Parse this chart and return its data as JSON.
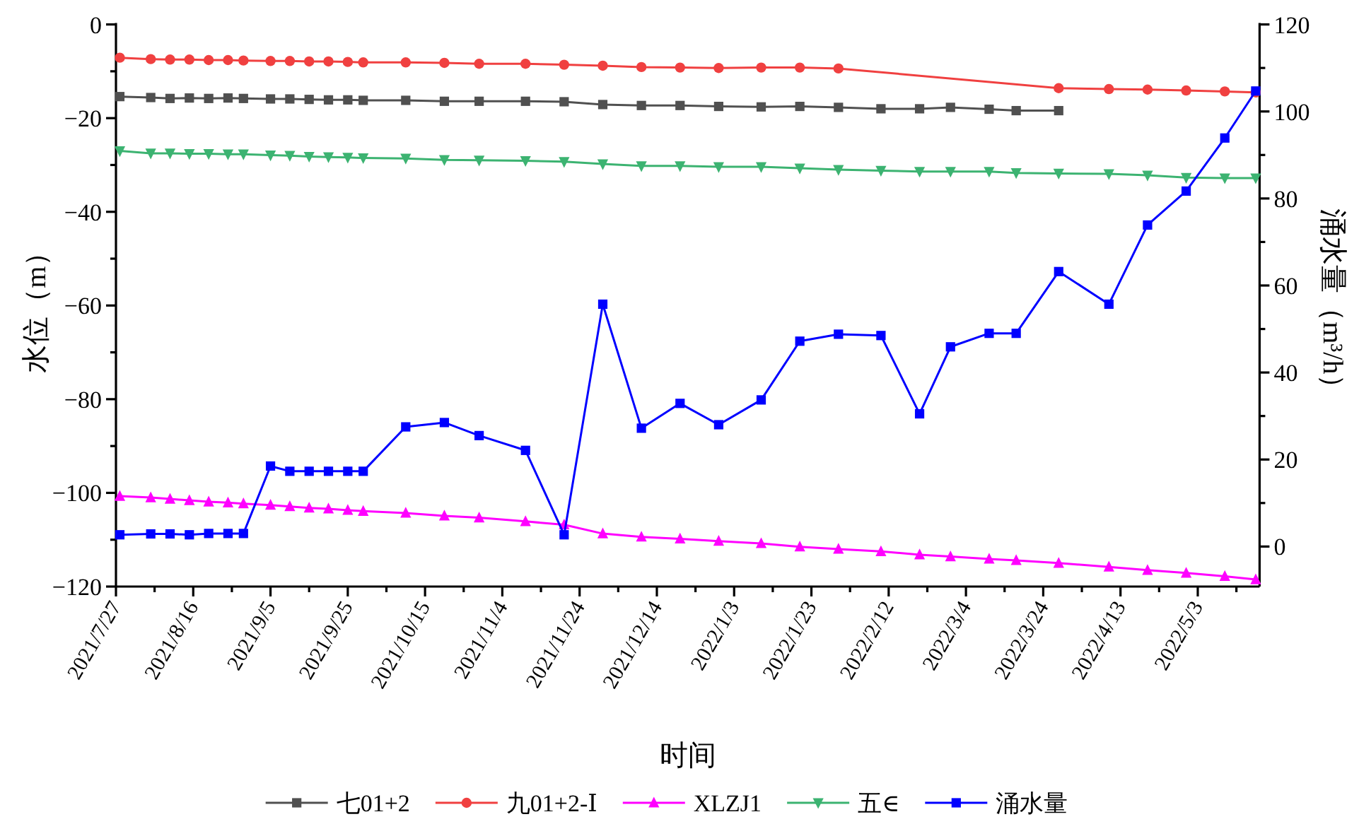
{
  "chart_data": {
    "type": "line",
    "xlabel": "时间",
    "ylabel": "水位（m）",
    "y2label": "涌水量（m³/h）",
    "legend": "bottom",
    "xlim": [
      "2021-07-27",
      "2022-05-19"
    ],
    "xticks": [
      {
        "value": "2021-07-27",
        "label": "2021/7/27"
      },
      {
        "value": "2021-08-16",
        "label": "2021/8/16"
      },
      {
        "value": "2021-09-05",
        "label": "2021/9/5"
      },
      {
        "value": "2021-09-25",
        "label": "2021/9/25"
      },
      {
        "value": "2021-10-15",
        "label": "2021/10/15"
      },
      {
        "value": "2021-11-04",
        "label": "2021/11/4"
      },
      {
        "value": "2021-11-24",
        "label": "2021/11/24"
      },
      {
        "value": "2021-12-14",
        "label": "2021/12/14"
      },
      {
        "value": "2022-01-03",
        "label": "2022/1/3"
      },
      {
        "value": "2022-01-23",
        "label": "2022/1/23"
      },
      {
        "value": "2022-02-12",
        "label": "2022/2/12"
      },
      {
        "value": "2022-03-04",
        "label": "2022/3/4"
      },
      {
        "value": "2022-03-24",
        "label": "2022/3/24"
      },
      {
        "value": "2022-04-13",
        "label": "2022/4/13"
      },
      {
        "value": "2022-05-03",
        "label": "2022/5/3"
      }
    ],
    "ylim": [
      -120,
      0
    ],
    "yticks": [
      0,
      -20,
      -40,
      -60,
      -80,
      -100,
      -120
    ],
    "y2lim": [
      -9.2,
      120
    ],
    "y2ticks": [
      0,
      20,
      40,
      60,
      80,
      100,
      120
    ],
    "series": [
      {
        "name": "七01+2",
        "color": "#505050",
        "marker": "square",
        "x": [
          "2021-07-28",
          "2021-08-05",
          "2021-08-10",
          "2021-08-15",
          "2021-08-20",
          "2021-08-25",
          "2021-08-29",
          "2021-09-05",
          "2021-09-10",
          "2021-09-15",
          "2021-09-20",
          "2021-09-25",
          "2021-09-29",
          "2021-10-10",
          "2021-10-20",
          "2021-10-29",
          "2021-11-10",
          "2021-11-20",
          "2021-11-30",
          "2021-12-10",
          "2021-12-20",
          "2021-12-30",
          "2022-01-10",
          "2022-01-20",
          "2022-01-30",
          "2022-02-10",
          "2022-02-20",
          "2022-02-28",
          "2022-03-10",
          "2022-03-17",
          "2022-03-28"
        ],
        "values": [
          -15.4,
          -15.6,
          -15.8,
          -15.7,
          -15.8,
          -15.7,
          -15.8,
          -15.9,
          -15.9,
          -16.0,
          -16.1,
          -16.1,
          -16.2,
          -16.2,
          -16.4,
          -16.4,
          -16.4,
          -16.5,
          -17.1,
          -17.3,
          -17.3,
          -17.5,
          -17.6,
          -17.5,
          -17.7,
          -18.0,
          -18.0,
          -17.7,
          -18.1,
          -18.4,
          -18.4
        ]
      },
      {
        "name": "九01+2-Ⅰ",
        "color": "#f04040",
        "marker": "circle",
        "x": [
          "2021-07-28",
          "2021-08-05",
          "2021-08-10",
          "2021-08-15",
          "2021-08-20",
          "2021-08-25",
          "2021-08-29",
          "2021-09-05",
          "2021-09-10",
          "2021-09-15",
          "2021-09-20",
          "2021-09-25",
          "2021-09-29",
          "2021-10-10",
          "2021-10-20",
          "2021-10-29",
          "2021-11-10",
          "2021-11-20",
          "2021-11-30",
          "2021-12-10",
          "2021-12-20",
          "2021-12-30",
          "2022-01-10",
          "2022-01-20",
          "2022-01-30",
          "2022-03-28",
          "2022-04-10",
          "2022-04-20",
          "2022-04-30",
          "2022-05-10",
          "2022-05-18"
        ],
        "values": [
          -7.1,
          -7.4,
          -7.5,
          -7.5,
          -7.6,
          -7.6,
          -7.7,
          -7.8,
          -7.8,
          -7.9,
          -7.9,
          -8.0,
          -8.1,
          -8.1,
          -8.2,
          -8.4,
          -8.4,
          -8.6,
          -8.8,
          -9.1,
          -9.2,
          -9.3,
          -9.2,
          -9.2,
          -9.4,
          -13.6,
          -13.8,
          -13.9,
          -14.1,
          -14.3,
          -14.5
        ]
      },
      {
        "name": "XLZJ1",
        "color": "#ff00ff",
        "marker": "triangle",
        "x": [
          "2021-07-28",
          "2021-08-05",
          "2021-08-10",
          "2021-08-15",
          "2021-08-20",
          "2021-08-25",
          "2021-08-29",
          "2021-09-05",
          "2021-09-10",
          "2021-09-15",
          "2021-09-20",
          "2021-09-25",
          "2021-09-29",
          "2021-10-10",
          "2021-10-20",
          "2021-10-29",
          "2021-11-10",
          "2021-11-20",
          "2021-11-30",
          "2021-12-10",
          "2021-12-20",
          "2021-12-30",
          "2022-01-10",
          "2022-01-20",
          "2022-01-30",
          "2022-02-10",
          "2022-02-20",
          "2022-02-28",
          "2022-03-10",
          "2022-03-17",
          "2022-03-28",
          "2022-04-10",
          "2022-04-20",
          "2022-04-30",
          "2022-05-10",
          "2022-05-18"
        ],
        "values": [
          -100.7,
          -101.0,
          -101.3,
          -101.6,
          -101.9,
          -102.1,
          -102.3,
          -102.6,
          -102.9,
          -103.2,
          -103.4,
          -103.7,
          -103.9,
          -104.3,
          -104.9,
          -105.3,
          -106.1,
          -106.8,
          -108.7,
          -109.4,
          -109.8,
          -110.3,
          -110.8,
          -111.5,
          -112.0,
          -112.5,
          -113.2,
          -113.6,
          -114.1,
          -114.4,
          -115.0,
          -115.8,
          -116.5,
          -117.1,
          -117.8,
          -118.5
        ]
      },
      {
        "name": "五∈",
        "color": "#3cb371",
        "marker": "triangle-down",
        "x": [
          "2021-07-28",
          "2021-08-05",
          "2021-08-10",
          "2021-08-15",
          "2021-08-20",
          "2021-08-25",
          "2021-08-29",
          "2021-09-05",
          "2021-09-10",
          "2021-09-15",
          "2021-09-20",
          "2021-09-25",
          "2021-09-29",
          "2021-10-10",
          "2021-10-20",
          "2021-10-29",
          "2021-11-10",
          "2021-11-20",
          "2021-11-30",
          "2021-12-10",
          "2021-12-20",
          "2021-12-30",
          "2022-01-10",
          "2022-01-20",
          "2022-01-30",
          "2022-02-10",
          "2022-02-20",
          "2022-02-28",
          "2022-03-10",
          "2022-03-17",
          "2022-03-28",
          "2022-04-10",
          "2022-04-20",
          "2022-04-30",
          "2022-05-10",
          "2022-05-18"
        ],
        "values": [
          -27.0,
          -27.5,
          -27.5,
          -27.6,
          -27.6,
          -27.7,
          -27.7,
          -27.9,
          -28.0,
          -28.2,
          -28.3,
          -28.4,
          -28.5,
          -28.6,
          -28.9,
          -29.0,
          -29.1,
          -29.3,
          -29.8,
          -30.2,
          -30.2,
          -30.4,
          -30.4,
          -30.7,
          -31.0,
          -31.2,
          -31.4,
          -31.4,
          -31.4,
          -31.7,
          -31.8,
          -31.9,
          -32.2,
          -32.7,
          -32.8,
          -32.8
        ]
      },
      {
        "name": "涌水量",
        "color": "#0000ff",
        "marker": "square",
        "axis": "y2",
        "x": [
          "2021-07-28",
          "2021-08-05",
          "2021-08-10",
          "2021-08-15",
          "2021-08-20",
          "2021-08-25",
          "2021-08-29",
          "2021-09-05",
          "2021-09-10",
          "2021-09-15",
          "2021-09-20",
          "2021-09-25",
          "2021-09-29",
          "2021-10-10",
          "2021-10-20",
          "2021-10-29",
          "2021-11-10",
          "2021-11-20",
          "2021-11-30",
          "2021-12-10",
          "2021-12-20",
          "2021-12-30",
          "2022-01-10",
          "2022-01-20",
          "2022-01-30",
          "2022-02-10",
          "2022-02-20",
          "2022-02-28",
          "2022-03-10",
          "2022-03-17",
          "2022-03-28",
          "2022-04-10",
          "2022-04-20",
          "2022-04-30",
          "2022-05-10",
          "2022-05-18"
        ],
        "values": [
          2.7,
          2.9,
          2.9,
          2.7,
          3.0,
          3.0,
          3.0,
          18.5,
          17.3,
          17.3,
          17.3,
          17.3,
          17.3,
          27.5,
          28.5,
          25.5,
          22.1,
          2.7,
          55.7,
          27.2,
          32.9,
          28.0,
          33.7,
          47.2,
          48.8,
          48.5,
          30.5,
          45.9,
          49.0,
          49.0,
          63.2,
          55.7,
          73.9,
          81.7,
          93.9,
          104.7
        ]
      }
    ]
  }
}
